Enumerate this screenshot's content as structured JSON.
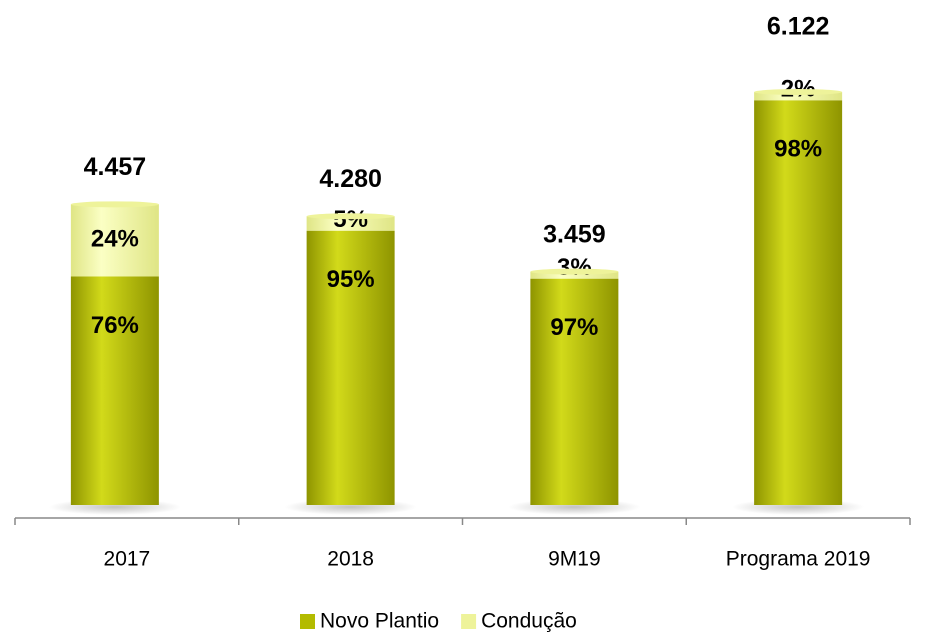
{
  "chart_data": {
    "type": "bar",
    "stacked": true,
    "categories": [
      "2017",
      "2018",
      "9M19",
      "Programa 2019"
    ],
    "totals": {
      "values": [
        4457,
        4280,
        3459,
        6122
      ],
      "value_labels": [
        "4.457",
        "4.280",
        "3.459",
        "6.122"
      ]
    },
    "series": [
      {
        "name": "Novo Plantio",
        "color": "#b3bb00",
        "values": [
          76,
          95,
          97,
          98
        ],
        "value_labels": [
          "76%",
          "95%",
          "97%",
          "98%"
        ]
      },
      {
        "name": "Condução",
        "color": "#eef39a",
        "values": [
          24,
          5,
          3,
          2
        ],
        "value_labels": [
          "24%",
          "5%",
          "3%",
          "2%"
        ]
      }
    ],
    "legend": "bottom"
  }
}
